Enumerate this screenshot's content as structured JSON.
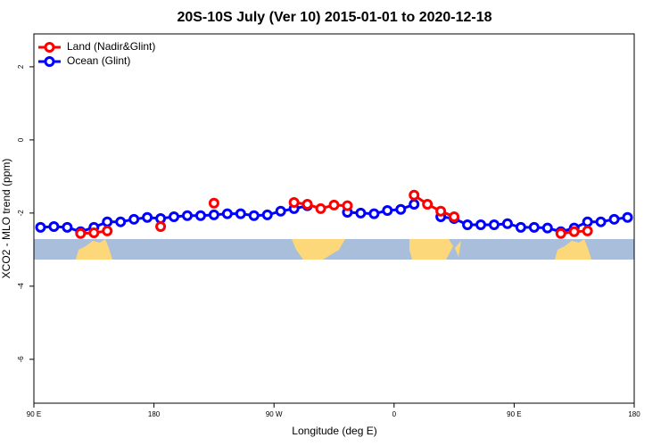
{
  "chart_data": {
    "type": "line",
    "title": "20S-10S July (Ver 10)   2015-01-01 to 2020-12-18",
    "xlabel": "Longitude (deg E)",
    "ylabel": "XCO2 - MLO trend (ppm)",
    "x": [
      95,
      105,
      115,
      125,
      135,
      145,
      155,
      165,
      175,
      185,
      195,
      205,
      215,
      225,
      235,
      245,
      255,
      265,
      275,
      285,
      295,
      305,
      315,
      325,
      335,
      345,
      355,
      365,
      375,
      385,
      395,
      405,
      415,
      425,
      435,
      445,
      455,
      465,
      475,
      485,
      495,
      505,
      515,
      525,
      535
    ],
    "series": [
      {
        "name": "Ocean (Glint)",
        "color": "#0000ff",
        "values": [
          -2.39,
          -2.37,
          -2.39,
          -2.51,
          -2.39,
          -2.24,
          -2.24,
          -2.17,
          -2.12,
          -2.15,
          -2.1,
          -2.07,
          -2.07,
          -2.05,
          -2.02,
          -2.02,
          -2.07,
          -2.05,
          -1.95,
          -1.88,
          -1.8,
          null,
          null,
          -1.98,
          -2.0,
          -2.02,
          -1.93,
          -1.9,
          -1.76,
          null,
          -2.1,
          -2.15,
          -2.32,
          -2.32,
          -2.32,
          -2.29,
          -2.39,
          -2.39,
          -2.41,
          -2.51,
          -2.41,
          -2.24,
          -2.24,
          -2.17,
          -2.12
        ]
      },
      {
        "name": "Land (Nadir&Glint)",
        "color": "#ff0000",
        "values": [
          null,
          null,
          null,
          -2.56,
          -2.54,
          -2.49,
          null,
          null,
          null,
          -2.37,
          null,
          null,
          null,
          -1.73,
          null,
          null,
          null,
          null,
          null,
          -1.71,
          -1.76,
          -1.88,
          -1.78,
          -1.8,
          null,
          null,
          null,
          null,
          -1.51,
          -1.76,
          -1.95,
          -2.1,
          null,
          null,
          null,
          null,
          null,
          null,
          null,
          -2.56,
          -2.51,
          -2.49,
          null,
          null,
          null
        ]
      }
    ],
    "legend_order": [
      "Land (Nadir&Glint)",
      "Ocean (Glint)"
    ],
    "legend": "top-left",
    "xlim": [
      90,
      540
    ],
    "xticks": [
      {
        "value": 90,
        "label": "90 E"
      },
      {
        "value": 180,
        "label": "180"
      },
      {
        "value": 270,
        "label": "90 W"
      },
      {
        "value": 360,
        "label": "0"
      },
      {
        "value": 450,
        "label": "90 E"
      },
      {
        "value": 540,
        "label": "180"
      }
    ],
    "ylim": [
      -7.2,
      2.9
    ],
    "yticks": [
      2,
      0,
      -2,
      -4,
      -6
    ]
  }
}
